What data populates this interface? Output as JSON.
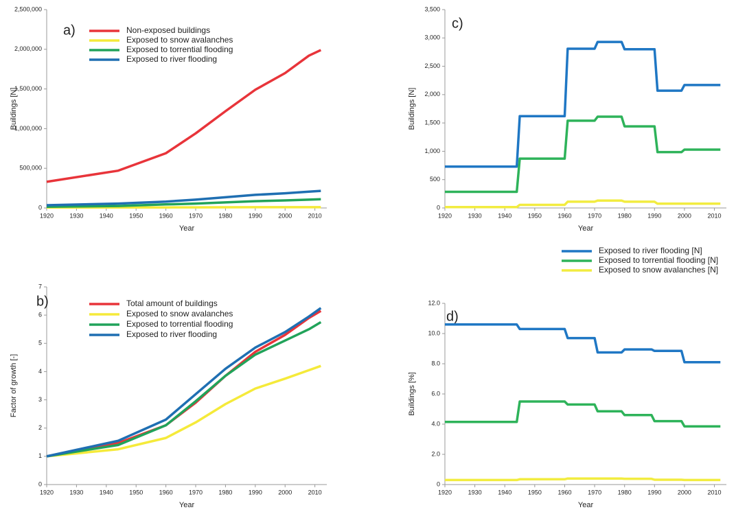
{
  "chart_data": [
    {
      "type": "line",
      "label": "a)",
      "xlabel": "Year",
      "ylabel": "Buildings [N]",
      "legend": "upper left",
      "x": [
        1920,
        1944,
        1960,
        1970,
        1980,
        1990,
        2000,
        2008,
        2012
      ],
      "xlim": [
        1920,
        2014
      ],
      "xticks": [
        1920,
        1930,
        1940,
        1950,
        1960,
        1970,
        1980,
        1990,
        2000,
        2010
      ],
      "ylim": [
        0,
        2500000
      ],
      "yticks": [
        0,
        {
          "value": 500000,
          "label": "500,000"
        },
        {
          "value": 1000000,
          "label": "1,000,000"
        },
        {
          "value": 1500000,
          "label": "1,500,000"
        },
        {
          "value": 2000000,
          "label": "2,000,000"
        },
        {
          "value": 2500000,
          "label": "2,500,000"
        }
      ],
      "series": [
        {
          "name": "Non-exposed buildings",
          "color": "#e8343a",
          "values": [
            330000,
            470000,
            690000,
            940000,
            1220000,
            1490000,
            1700000,
            1920000,
            1990000
          ]
        },
        {
          "name": "Exposed to snow avalanches",
          "color": "#f5ea3a",
          "values": [
            5000,
            6000,
            7000,
            8000,
            9000,
            10000,
            10000,
            10000,
            10000
          ]
        },
        {
          "name": "Exposed to torrential flooding",
          "color": "#21a35a",
          "values": [
            15000,
            25000,
            45000,
            55000,
            70000,
            85000,
            95000,
            105000,
            110000
          ]
        },
        {
          "name": "Exposed to river flooding",
          "color": "#1f6fb2",
          "values": [
            35000,
            55000,
            80000,
            105000,
            135000,
            165000,
            185000,
            205000,
            215000
          ]
        }
      ]
    },
    {
      "type": "line",
      "label": "b)",
      "xlabel": "Year",
      "ylabel": "Factor of growth [-]",
      "legend": "upper left",
      "x": [
        1920,
        1944,
        1960,
        1970,
        1980,
        1990,
        2000,
        2008,
        2012
      ],
      "xlim": [
        1920,
        2014
      ],
      "xticks": [
        1920,
        1930,
        1940,
        1950,
        1960,
        1970,
        1980,
        1990,
        2000,
        2010
      ],
      "ylim": [
        0,
        7
      ],
      "yticks": [
        0,
        1,
        2,
        3,
        4,
        5,
        6,
        7
      ],
      "series": [
        {
          "name": "Total amount of buildings",
          "color": "#e8343a",
          "values": [
            1,
            1.47,
            2.1,
            2.9,
            3.85,
            4.7,
            5.3,
            5.9,
            6.15
          ]
        },
        {
          "name": "Exposed to snow avalanches",
          "color": "#f5ea3a",
          "values": [
            1,
            1.25,
            1.65,
            2.2,
            2.85,
            3.4,
            3.75,
            4.05,
            4.2
          ]
        },
        {
          "name": "Exposed to torrential flooding",
          "color": "#21a35a",
          "values": [
            1,
            1.4,
            2.1,
            2.95,
            3.85,
            4.6,
            5.1,
            5.5,
            5.75
          ]
        },
        {
          "name": "Exposed to river flooding",
          "color": "#1f6fb2",
          "values": [
            1,
            1.55,
            2.3,
            3.2,
            4.1,
            4.85,
            5.4,
            5.95,
            6.25
          ]
        }
      ]
    },
    {
      "type": "line",
      "label": "c)",
      "xlabel": "Year",
      "ylabel": "Buildings [N]",
      "x": [
        1920,
        1944,
        1945,
        1960,
        1961,
        1970,
        1971,
        1979,
        1980,
        1990,
        1991,
        1999,
        2000,
        2012
      ],
      "xlim": [
        1920,
        2014
      ],
      "xticks": [
        1920,
        1930,
        1940,
        1950,
        1960,
        1970,
        1980,
        1990,
        2000,
        2010
      ],
      "ylim": [
        0,
        3500
      ],
      "yticks": [
        0,
        500,
        {
          "value": 1000,
          "label": "1,000"
        },
        {
          "value": 1500,
          "label": "1,500"
        },
        {
          "value": 2000,
          "label": "2,000"
        },
        {
          "value": 2500,
          "label": "2,500"
        },
        {
          "value": 3000,
          "label": "3,000"
        },
        {
          "value": 3500,
          "label": "3,500"
        }
      ],
      "series": [
        {
          "color": "#1f77c4",
          "values": [
            730,
            730,
            1620,
            1620,
            2810,
            2810,
            2930,
            2930,
            2800,
            2800,
            2070,
            2070,
            2170,
            2170
          ]
        },
        {
          "color": "#2eb35a",
          "values": [
            285,
            285,
            870,
            870,
            1540,
            1540,
            1610,
            1610,
            1440,
            1440,
            985,
            985,
            1030,
            1030
          ]
        },
        {
          "color": "#f2ec40",
          "values": [
            15,
            15,
            55,
            55,
            110,
            110,
            130,
            130,
            110,
            110,
            75,
            75,
            75,
            75
          ]
        }
      ]
    },
    {
      "type": "line",
      "label": "d)",
      "xlabel": "Year",
      "ylabel": "Buildings [%]",
      "legend": "above",
      "x": [
        1920,
        1944,
        1945,
        1960,
        1961,
        1970,
        1971,
        1979,
        1980,
        1989,
        1990,
        1999,
        2000,
        2012
      ],
      "xlim": [
        1920,
        2014
      ],
      "xticks": [
        1920,
        1930,
        1940,
        1950,
        1960,
        1970,
        1980,
        1990,
        2000,
        2010
      ],
      "ylim": [
        0,
        12
      ],
      "yticks": [
        0,
        {
          "value": 2,
          "label": "2.0"
        },
        {
          "value": 4,
          "label": "4.0"
        },
        {
          "value": 6,
          "label": "6.0"
        },
        {
          "value": 8,
          "label": "8.0"
        },
        {
          "value": 10,
          "label": "10.0"
        },
        {
          "value": 12,
          "label": "12.0"
        }
      ],
      "series": [
        {
          "name": "Exposed to river flooding [N]",
          "color": "#1f77c4",
          "values": [
            10.6,
            10.6,
            10.3,
            10.3,
            9.7,
            9.7,
            8.75,
            8.75,
            8.95,
            8.95,
            8.85,
            8.85,
            8.1,
            8.1
          ]
        },
        {
          "name": "Exposed to torrential flooding [N]",
          "color": "#2eb35a",
          "values": [
            4.15,
            4.15,
            5.5,
            5.5,
            5.3,
            5.3,
            4.85,
            4.85,
            4.6,
            4.6,
            4.2,
            4.2,
            3.85,
            3.85
          ]
        },
        {
          "name": "Exposed to snow avalanches [N]",
          "color": "#f2ec40",
          "values": [
            0.3,
            0.3,
            0.35,
            0.35,
            0.4,
            0.4,
            0.4,
            0.4,
            0.38,
            0.38,
            0.32,
            0.32,
            0.3,
            0.3
          ]
        }
      ]
    }
  ]
}
